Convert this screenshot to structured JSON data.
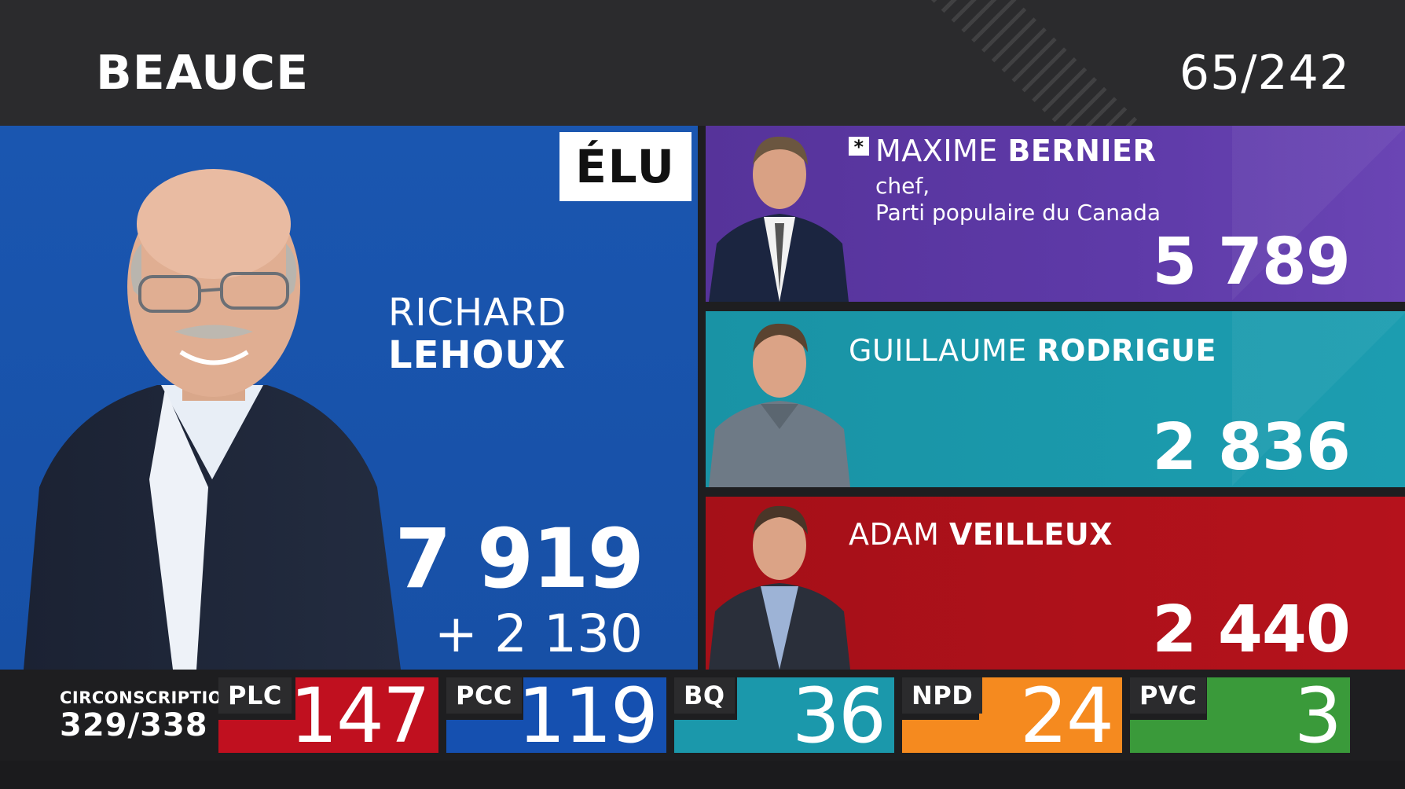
{
  "header": {
    "riding": "BEAUCE",
    "progress": "65/242"
  },
  "winner": {
    "status": "ÉLU",
    "first_name": "RICHARD",
    "last_name": "LEHOUX",
    "votes": "7 919",
    "lead": "+ 2 130",
    "color": "#1a56b0"
  },
  "candidates": [
    {
      "first_name": "MAXIME",
      "last_name": "BERNIER",
      "marker": "*",
      "role": "chef,",
      "party": "Parti populaire du Canada",
      "votes": "5 789",
      "color": "#5a37a2"
    },
    {
      "first_name": "GUILLAUME",
      "last_name": "RODRIGUE",
      "votes": "2 836",
      "color": "#1b98ab"
    },
    {
      "first_name": "ADAM",
      "last_name": "VEILLEUX",
      "votes": "2 440",
      "color": "#ad111a"
    }
  ],
  "seats": {
    "label": "CIRCONSCRIPTIONS",
    "value": "329/338",
    "parties": [
      {
        "abbr": "PLC",
        "seats": "147",
        "color": "#c0101f"
      },
      {
        "abbr": "PCC",
        "seats": "119",
        "color": "#1550b0"
      },
      {
        "abbr": "BQ",
        "seats": "36",
        "color": "#1b98ab"
      },
      {
        "abbr": "NPD",
        "seats": "24",
        "color": "#f58a1f"
      },
      {
        "abbr": "PVC",
        "seats": "3",
        "color": "#3a9a3a"
      }
    ]
  }
}
